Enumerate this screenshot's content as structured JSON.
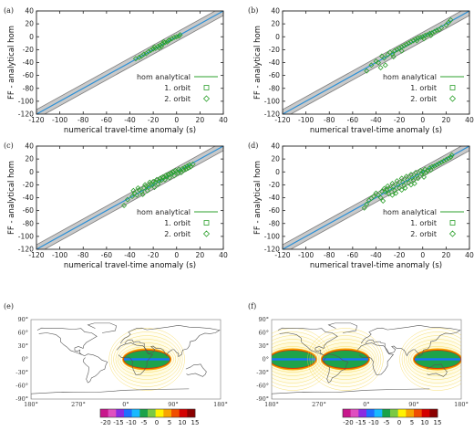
{
  "chart_data": [
    {
      "type": "scatter",
      "panel": "(a)",
      "xlabel": "numerical travel-time anomaly (s)",
      "ylabel": "FF - analytical hom",
      "xlim": [
        -120,
        40
      ],
      "ylim": [
        -120,
        40
      ],
      "xticks": [
        "-120",
        "-100",
        "-80",
        "-60",
        "-40",
        "-20",
        "0",
        "20",
        "40"
      ],
      "yticks": [
        "40",
        "20",
        "0",
        "-20",
        "-40",
        "-60",
        "-80",
        "-100",
        "-120"
      ],
      "legend": [
        "hom analytical",
        "1. orbit",
        "2. orbit"
      ],
      "legend_position": "bottom-right",
      "reference_line": {
        "name": "hom analytical",
        "x": [
          -120,
          40
        ],
        "y": [
          -120,
          40
        ]
      },
      "series": [
        {
          "name": "1. orbit",
          "points": []
        },
        {
          "name": "2. orbit",
          "points": [
            [
              -35,
              -34
            ],
            [
              -32,
              -32
            ],
            [
              -30,
              -30
            ],
            [
              -28,
              -27
            ],
            [
              -26,
              -26
            ],
            [
              -24,
              -23
            ],
            [
              -22,
              -21
            ],
            [
              -20,
              -19
            ],
            [
              -18,
              -18
            ],
            [
              -16,
              -15
            ],
            [
              -14,
              -13
            ],
            [
              -12,
              -11
            ],
            [
              -10,
              -9
            ],
            [
              -8,
              -8
            ],
            [
              -6,
              -5
            ],
            [
              -4,
              -3
            ],
            [
              -2,
              -1
            ],
            [
              0,
              0
            ],
            [
              2,
              1
            ],
            [
              3,
              3
            ],
            [
              -19,
              -16
            ],
            [
              -15,
              -17
            ],
            [
              -11,
              -8
            ],
            [
              -7,
              -6
            ],
            [
              -13,
              -15
            ]
          ]
        }
      ]
    },
    {
      "type": "scatter",
      "panel": "(b)",
      "xlabel": "numerical travel-time anomaly (s)",
      "ylabel": "FF - analytical hom",
      "xlim": [
        -120,
        40
      ],
      "ylim": [
        -120,
        40
      ],
      "xticks": [
        "-120",
        "-100",
        "-80",
        "-60",
        "-40",
        "-20",
        "0",
        "20",
        "40"
      ],
      "yticks": [
        "40",
        "20",
        "0",
        "-20",
        "-40",
        "-60",
        "-80",
        "-100",
        "-120"
      ],
      "legend": [
        "hom analytical",
        "1. orbit",
        "2. orbit"
      ],
      "legend_position": "bottom-right",
      "reference_line": {
        "name": "hom analytical",
        "x": [
          -120,
          40
        ],
        "y": [
          -120,
          40
        ]
      },
      "series": [
        {
          "name": "1. orbit",
          "points": []
        },
        {
          "name": "2. orbit",
          "points": [
            [
              -48,
              -53
            ],
            [
              -44,
              -44
            ],
            [
              -40,
              -38
            ],
            [
              -38,
              -40
            ],
            [
              -35,
              -30
            ],
            [
              -33,
              -33
            ],
            [
              -30,
              -28
            ],
            [
              -28,
              -24
            ],
            [
              -26,
              -27
            ],
            [
              -24,
              -22
            ],
            [
              -22,
              -20
            ],
            [
              -20,
              -18
            ],
            [
              -18,
              -16
            ],
            [
              -16,
              -14
            ],
            [
              -14,
              -12
            ],
            [
              -12,
              -10
            ],
            [
              -10,
              -8
            ],
            [
              -8,
              -6
            ],
            [
              -6,
              -4
            ],
            [
              -4,
              -2
            ],
            [
              -2,
              -1
            ],
            [
              0,
              0
            ],
            [
              2,
              2
            ],
            [
              4,
              3
            ],
            [
              6,
              5
            ],
            [
              8,
              6
            ],
            [
              10,
              8
            ],
            [
              12,
              10
            ],
            [
              14,
              11
            ],
            [
              16,
              14
            ],
            [
              20,
              18
            ],
            [
              22,
              22
            ],
            [
              24,
              26
            ],
            [
              -32,
              -44
            ],
            [
              -36,
              -48
            ],
            [
              -25,
              -31
            ],
            [
              -5,
              -6
            ],
            [
              1,
              -3
            ],
            [
              7,
              2
            ],
            [
              -18,
              -22
            ]
          ]
        }
      ]
    },
    {
      "type": "scatter",
      "panel": "(c)",
      "xlabel": "numerical travel-time anomaly (s)",
      "ylabel": "FF - analytical hom",
      "xlim": [
        -120,
        40
      ],
      "ylim": [
        -120,
        40
      ],
      "xticks": [
        "-120",
        "-100",
        "-80",
        "-60",
        "-40",
        "-20",
        "0",
        "20",
        "40"
      ],
      "yticks": [
        "40",
        "20",
        "0",
        "-20",
        "-40",
        "-60",
        "-80",
        "-100",
        "-120"
      ],
      "legend": [
        "hom analytical",
        "1. orbit",
        "2. orbit"
      ],
      "legend_position": "bottom-right",
      "reference_line": {
        "name": "hom analytical",
        "x": [
          -120,
          40
        ],
        "y": [
          -120,
          40
        ]
      },
      "series": [
        {
          "name": "1. orbit",
          "points": []
        },
        {
          "name": "2. orbit",
          "points": [
            [
              -45,
              -52
            ],
            [
              -42,
              -43
            ],
            [
              -38,
              -38
            ],
            [
              -36,
              -33
            ],
            [
              -34,
              -36
            ],
            [
              -32,
              -28
            ],
            [
              -30,
              -31
            ],
            [
              -28,
              -25
            ],
            [
              -26,
              -22
            ],
            [
              -25,
              -29
            ],
            [
              -24,
              -24
            ],
            [
              -22,
              -18
            ],
            [
              -21,
              -20
            ],
            [
              -20,
              -15
            ],
            [
              -18,
              -16
            ],
            [
              -17,
              -12
            ],
            [
              -16,
              -19
            ],
            [
              -15,
              -14
            ],
            [
              -14,
              -10
            ],
            [
              -13,
              -13
            ],
            [
              -12,
              -8
            ],
            [
              -11,
              -9
            ],
            [
              -10,
              -12
            ],
            [
              -9,
              -5
            ],
            [
              -8,
              -7
            ],
            [
              -7,
              -4
            ],
            [
              -6,
              -9
            ],
            [
              -5,
              -2
            ],
            [
              -4,
              -3
            ],
            [
              -3,
              0
            ],
            [
              -2,
              -6
            ],
            [
              -1,
              2
            ],
            [
              0,
              0
            ],
            [
              1,
              -2
            ],
            [
              2,
              4
            ],
            [
              3,
              2
            ],
            [
              4,
              -1
            ],
            [
              5,
              5
            ],
            [
              6,
              3
            ],
            [
              7,
              7
            ],
            [
              8,
              4
            ],
            [
              9,
              9
            ],
            [
              10,
              6
            ],
            [
              11,
              11
            ],
            [
              12,
              8
            ],
            [
              14,
              12
            ],
            [
              -37,
              -29
            ],
            [
              -27,
              -20
            ],
            [
              -19,
              -24
            ],
            [
              -33,
              -25
            ],
            [
              -29,
              -35
            ],
            [
              -23,
              -16
            ]
          ]
        }
      ]
    },
    {
      "type": "scatter",
      "panel": "(d)",
      "xlabel": "numerical travel-time anomaly (s)",
      "ylabel": "FF - analytical hom",
      "xlim": [
        -120,
        40
      ],
      "ylim": [
        -120,
        40
      ],
      "xticks": [
        "-120",
        "-100",
        "-80",
        "-60",
        "-40",
        "-20",
        "0",
        "20",
        "40"
      ],
      "yticks": [
        "40",
        "20",
        "0",
        "-20",
        "-40",
        "-60",
        "-80",
        "-100",
        "-120"
      ],
      "legend": [
        "hom analytical",
        "1. orbit",
        "2. orbit"
      ],
      "legend_position": "bottom-right",
      "reference_line": {
        "name": "hom analytical",
        "x": [
          -120,
          40
        ],
        "y": [
          -120,
          40
        ]
      },
      "series": [
        {
          "name": "1. orbit",
          "points": []
        },
        {
          "name": "2. orbit",
          "points": [
            [
              -50,
              -56
            ],
            [
              -48,
              -50
            ],
            [
              -46,
              -44
            ],
            [
              -44,
              -41
            ],
            [
              -42,
              -38
            ],
            [
              -40,
              -33
            ],
            [
              -38,
              -36
            ],
            [
              -36,
              -40
            ],
            [
              -35,
              -30
            ],
            [
              -33,
              -26
            ],
            [
              -32,
              -31
            ],
            [
              -30,
              -22
            ],
            [
              -29,
              -34
            ],
            [
              -28,
              -27
            ],
            [
              -26,
              -18
            ],
            [
              -25,
              -23
            ],
            [
              -24,
              -29
            ],
            [
              -22,
              -14
            ],
            [
              -21,
              -20
            ],
            [
              -20,
              -25
            ],
            [
              -18,
              -10
            ],
            [
              -17,
              -16
            ],
            [
              -16,
              -21
            ],
            [
              -14,
              -7
            ],
            [
              -13,
              -12
            ],
            [
              -12,
              -17
            ],
            [
              -10,
              -4
            ],
            [
              -9,
              -9
            ],
            [
              -8,
              -13
            ],
            [
              -6,
              -1
            ],
            [
              -5,
              -6
            ],
            [
              -4,
              -10
            ],
            [
              -2,
              2
            ],
            [
              -1,
              -3
            ],
            [
              0,
              0
            ],
            [
              2,
              4
            ],
            [
              3,
              -1
            ],
            [
              4,
              2
            ],
            [
              6,
              6
            ],
            [
              7,
              3
            ],
            [
              8,
              8
            ],
            [
              10,
              9
            ],
            [
              12,
              11
            ],
            [
              14,
              13
            ],
            [
              16,
              15
            ],
            [
              18,
              17
            ],
            [
              20,
              19
            ],
            [
              22,
              21
            ],
            [
              24,
              23
            ],
            [
              25,
              26
            ],
            [
              -34,
              -45
            ],
            [
              -26,
              -36
            ],
            [
              -18,
              -28
            ],
            [
              -10,
              -20
            ],
            [
              -31,
              -28
            ],
            [
              -23,
              -33
            ],
            [
              -15,
              -25
            ],
            [
              -7,
              -18
            ],
            [
              1,
              -8
            ]
          ]
        }
      ]
    },
    {
      "type": "heatmap",
      "panel": "(e)",
      "map": "world",
      "lat_ticks": [
        "90°",
        "60°",
        "30°",
        "0°",
        "-30°",
        "-60°",
        "-90°"
      ],
      "lon_ticks": [
        "180°",
        "270°",
        "0°",
        "90°",
        "180°"
      ],
      "sources": [
        {
          "lon": 40,
          "lat": 0
        }
      ],
      "colorbar": {
        "ticks": [
          "-20",
          "-15",
          "-10",
          "-5",
          "0",
          "5",
          "10",
          "15"
        ],
        "colors": [
          "#c8178c",
          "#e04fc0",
          "#8a2be2",
          "#1f6fff",
          "#19b9ff",
          "#1aa24a",
          "#7ac943",
          "#fff200",
          "#f7a400",
          "#f04e00",
          "#d40000",
          "#8b0000"
        ]
      }
    },
    {
      "type": "heatmap",
      "panel": "(f)",
      "map": "world",
      "lat_ticks": [
        "90°",
        "60°",
        "30°",
        "0°",
        "-30°",
        "-60°",
        "-90°"
      ],
      "lon_ticks": [
        "180°",
        "270°",
        "0°",
        "90°",
        "180°"
      ],
      "sources": [
        {
          "lon": 220,
          "lat": 0
        },
        {
          "lon": 320,
          "lat": 0
        },
        {
          "lon": 135,
          "lat": 0
        }
      ],
      "colorbar": {
        "ticks": [
          "-20",
          "-15",
          "-10",
          "-5",
          "0",
          "5",
          "10",
          "15"
        ],
        "colors": [
          "#c8178c",
          "#e04fc0",
          "#8a2be2",
          "#1f6fff",
          "#19b9ff",
          "#1aa24a",
          "#7ac943",
          "#fff200",
          "#f7a400",
          "#f04e00",
          "#d40000",
          "#8b0000"
        ]
      }
    }
  ]
}
